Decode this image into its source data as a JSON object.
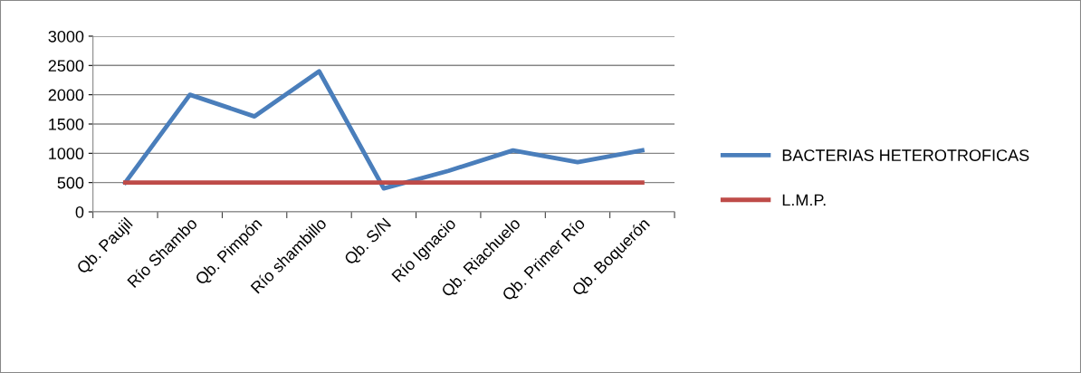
{
  "chart_data": {
    "type": "line",
    "categories": [
      "Qb. Paujil",
      "Río Shambo",
      "Qb. Pimpón",
      "Río shambillo",
      "Qb. S/N",
      "Río Ignacio",
      "Qb. Riachuelo",
      "Qb. Primer Río",
      "Qb. Boquerón"
    ],
    "series": [
      {
        "name": "BACTERIAS HETEROTROFICAS",
        "color": "#4a7ebb",
        "values": [
          500,
          2000,
          1630,
          2400,
          400,
          700,
          1050,
          850,
          1050
        ]
      },
      {
        "name": "L.M.P.",
        "color": "#be4b48",
        "values": [
          500,
          500,
          500,
          500,
          500,
          500,
          500,
          500,
          500
        ]
      }
    ],
    "ylim": [
      0,
      3000
    ],
    "yticks": [
      0,
      500,
      1000,
      1500,
      2000,
      2500,
      3000
    ],
    "grid": "y",
    "legend": "right",
    "marker": "none",
    "line_style": "solid"
  }
}
